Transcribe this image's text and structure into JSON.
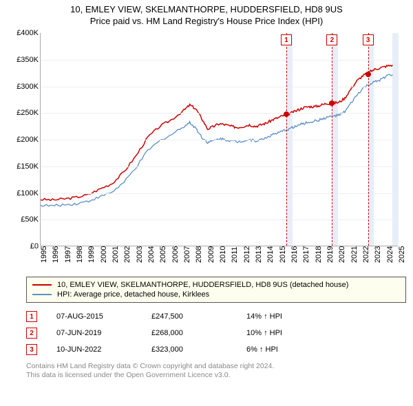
{
  "title": {
    "line1": "10, EMLEY VIEW, SKELMANTHORPE, HUDDERSFIELD, HD8 9US",
    "line2": "Price paid vs. HM Land Registry's House Price Index (HPI)"
  },
  "chart": {
    "type": "line",
    "background_color": "#ffffff",
    "grid_color": "#eeeeee",
    "x": {
      "min": 1995,
      "max": 2025,
      "step": 1
    },
    "y": {
      "min": 0,
      "max": 400000,
      "step": 50000,
      "tick_labels": [
        "£0",
        "£50K",
        "£100K",
        "£150K",
        "£200K",
        "£250K",
        "£300K",
        "£350K",
        "£400K"
      ]
    },
    "vbands": [
      {
        "start": 2015.6,
        "width_years": 0.5,
        "color": "#e8eef7"
      },
      {
        "start": 2019.43,
        "width_years": 0.5,
        "color": "#e8eef7"
      },
      {
        "start": 2022.44,
        "width_years": 0.5,
        "color": "#e8eef7"
      },
      {
        "start": 2024.5,
        "width_years": 0.5,
        "color": "#e8eef7"
      }
    ],
    "series": [
      {
        "id": "price_paid",
        "label": "10, EMLEY VIEW, SKELMANTHORPE, HUDDERSFIELD, HD8 9US (detached house)",
        "color": "#cc0000",
        "line_width": 1.5,
        "points": [
          [
            1995,
            88000
          ],
          [
            1996,
            87000
          ],
          [
            1997,
            89000
          ],
          [
            1998,
            92000
          ],
          [
            1999,
            97000
          ],
          [
            2000,
            108000
          ],
          [
            2001,
            118000
          ],
          [
            2002,
            140000
          ],
          [
            2003,
            170000
          ],
          [
            2004,
            205000
          ],
          [
            2005,
            225000
          ],
          [
            2006,
            238000
          ],
          [
            2007,
            255000
          ],
          [
            2007.5,
            265000
          ],
          [
            2008,
            258000
          ],
          [
            2008.5,
            240000
          ],
          [
            2009,
            220000
          ],
          [
            2009.5,
            225000
          ],
          [
            2010,
            230000
          ],
          [
            2010.5,
            228000
          ],
          [
            2011,
            225000
          ],
          [
            2011.5,
            223000
          ],
          [
            2012,
            225000
          ],
          [
            2012.5,
            228000
          ],
          [
            2013,
            225000
          ],
          [
            2013.5,
            228000
          ],
          [
            2014,
            232000
          ],
          [
            2014.5,
            238000
          ],
          [
            2015,
            242000
          ],
          [
            2015.5,
            247000
          ],
          [
            2016,
            250000
          ],
          [
            2016.5,
            255000
          ],
          [
            2017,
            260000
          ],
          [
            2017.5,
            262000
          ],
          [
            2018,
            262000
          ],
          [
            2018.5,
            265000
          ],
          [
            2019,
            268000
          ],
          [
            2019.5,
            269000
          ],
          [
            2020,
            270000
          ],
          [
            2020.5,
            278000
          ],
          [
            2021,
            295000
          ],
          [
            2021.5,
            310000
          ],
          [
            2022,
            320000
          ],
          [
            2022.5,
            326000
          ],
          [
            2023,
            332000
          ],
          [
            2023.5,
            335000
          ],
          [
            2024,
            338000
          ],
          [
            2024.5,
            340000
          ]
        ]
      },
      {
        "id": "hpi",
        "label": "HPI: Average price, detached house, Kirklees",
        "color": "#5b8fc9",
        "line_width": 1.3,
        "points": [
          [
            1995,
            77000
          ],
          [
            1996,
            76000
          ],
          [
            1997,
            78000
          ],
          [
            1998,
            80000
          ],
          [
            1999,
            85000
          ],
          [
            2000,
            93000
          ],
          [
            2001,
            102000
          ],
          [
            2002,
            120000
          ],
          [
            2003,
            148000
          ],
          [
            2004,
            180000
          ],
          [
            2005,
            198000
          ],
          [
            2006,
            210000
          ],
          [
            2007,
            225000
          ],
          [
            2007.5,
            232000
          ],
          [
            2008,
            222000
          ],
          [
            2008.5,
            205000
          ],
          [
            2009,
            195000
          ],
          [
            2009.5,
            198000
          ],
          [
            2010,
            202000
          ],
          [
            2010.5,
            200000
          ],
          [
            2011,
            198000
          ],
          [
            2011.5,
            196000
          ],
          [
            2012,
            198000
          ],
          [
            2012.5,
            200000
          ],
          [
            2013,
            198000
          ],
          [
            2013.5,
            200000
          ],
          [
            2014,
            205000
          ],
          [
            2014.5,
            210000
          ],
          [
            2015,
            213000
          ],
          [
            2015.5,
            218000
          ],
          [
            2016,
            222000
          ],
          [
            2016.5,
            226000
          ],
          [
            2017,
            230000
          ],
          [
            2017.5,
            233000
          ],
          [
            2018,
            235000
          ],
          [
            2018.5,
            238000
          ],
          [
            2019,
            242000
          ],
          [
            2019.5,
            244000
          ],
          [
            2020,
            246000
          ],
          [
            2020.5,
            252000
          ],
          [
            2021,
            268000
          ],
          [
            2021.5,
            283000
          ],
          [
            2022,
            296000
          ],
          [
            2022.5,
            303000
          ],
          [
            2023,
            308000
          ],
          [
            2023.5,
            312000
          ],
          [
            2024,
            320000
          ],
          [
            2024.5,
            322000
          ]
        ]
      }
    ],
    "sale_markers": [
      {
        "n": "1",
        "x": 2015.6,
        "y": 247500,
        "color": "#cc0000"
      },
      {
        "n": "2",
        "x": 2019.43,
        "y": 268000,
        "color": "#cc0000"
      },
      {
        "n": "3",
        "x": 2022.44,
        "y": 323000,
        "color": "#cc0000"
      }
    ]
  },
  "legend": {
    "items": [
      {
        "color": "#cc0000",
        "bind": "chart.series.0.label"
      },
      {
        "color": "#5b8fc9",
        "bind": "chart.series.1.label"
      }
    ]
  },
  "sales": [
    {
      "n": "1",
      "color": "#cc0000",
      "date": "07-AUG-2015",
      "price": "£247,500",
      "delta": "14% ↑ HPI"
    },
    {
      "n": "2",
      "color": "#cc0000",
      "date": "07-JUN-2019",
      "price": "£268,000",
      "delta": "10% ↑ HPI"
    },
    {
      "n": "3",
      "color": "#cc0000",
      "date": "10-JUN-2022",
      "price": "£323,000",
      "delta": "6% ↑ HPI"
    }
  ],
  "footer": {
    "line1": "Contains HM Land Registry data © Crown copyright and database right 2024.",
    "line2": "This data is licensed under the Open Government Licence v3.0."
  }
}
